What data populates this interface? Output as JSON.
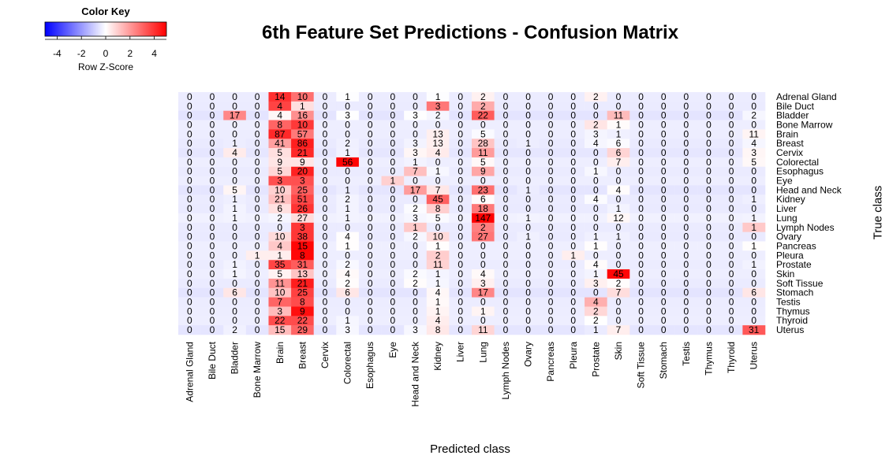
{
  "title": "6th Feature Set Predictions - Confusion Matrix",
  "color_key": {
    "title": "Color Key",
    "xlabel": "Row Z-Score",
    "ticks": [
      "-4",
      "-2",
      "0",
      "2",
      "4"
    ],
    "colors": {
      "low": "#0000ff",
      "mid": "#ffffff",
      "high": "#ff0000"
    }
  },
  "chart_data": {
    "type": "heatmap",
    "title": "6th Feature Set Predictions - Confusion Matrix",
    "xlabel": "Predicted class",
    "ylabel": "True class",
    "color_scale": "row z-score",
    "columns": [
      "Adrenal Gland",
      "Bile Duct",
      "Bladder",
      "Bone Marrow",
      "Brain",
      "Breast",
      "Cervix",
      "Colorectal",
      "Esophagus",
      "Eye",
      "Head and Neck",
      "Kidney",
      "Liver",
      "Lung",
      "Lymph Nodes",
      "Ovary",
      "Pancreas",
      "Pleura",
      "Prostate",
      "Skin",
      "Soft Tissue",
      "Stomach",
      "Testis",
      "Thymus",
      "Thyroid",
      "Uterus"
    ],
    "rows": [
      "Adrenal Gland",
      "Bile Duct",
      "Bladder",
      "Bone Marrow",
      "Brain",
      "Breast",
      "Cervix",
      "Colorectal",
      "Esophagus",
      "Eye",
      "Head and Neck",
      "Kidney",
      "Liver",
      "Lung",
      "Lymph Nodes",
      "Ovary",
      "Pancreas",
      "Pleura",
      "Prostate",
      "Skin",
      "Soft Tissue",
      "Stomach",
      "Testis",
      "Thymus",
      "Thyroid",
      "Uterus"
    ],
    "values": [
      [
        0,
        0,
        0,
        0,
        14,
        10,
        0,
        1,
        0,
        0,
        0,
        1,
        0,
        2,
        0,
        0,
        0,
        0,
        2,
        0,
        0,
        0,
        0,
        0,
        0,
        0
      ],
      [
        0,
        0,
        0,
        0,
        4,
        1,
        0,
        0,
        0,
        0,
        0,
        3,
        0,
        2,
        0,
        0,
        0,
        0,
        0,
        0,
        0,
        0,
        0,
        0,
        0,
        0
      ],
      [
        0,
        0,
        17,
        0,
        4,
        16,
        0,
        3,
        0,
        0,
        3,
        2,
        0,
        22,
        0,
        0,
        0,
        0,
        0,
        11,
        0,
        0,
        0,
        0,
        0,
        2
      ],
      [
        0,
        0,
        0,
        0,
        8,
        10,
        0,
        0,
        0,
        0,
        0,
        0,
        0,
        0,
        0,
        0,
        0,
        0,
        2,
        1,
        0,
        0,
        0,
        0,
        0,
        0
      ],
      [
        0,
        0,
        0,
        0,
        87,
        57,
        0,
        0,
        0,
        0,
        0,
        13,
        0,
        5,
        0,
        0,
        0,
        0,
        3,
        1,
        0,
        0,
        0,
        0,
        0,
        11
      ],
      [
        0,
        0,
        1,
        0,
        41,
        86,
        0,
        2,
        0,
        0,
        3,
        13,
        0,
        28,
        0,
        1,
        0,
        0,
        4,
        6,
        0,
        0,
        0,
        0,
        0,
        4
      ],
      [
        0,
        0,
        4,
        0,
        5,
        21,
        0,
        1,
        0,
        0,
        3,
        4,
        0,
        11,
        0,
        0,
        0,
        0,
        0,
        6,
        0,
        0,
        0,
        0,
        0,
        3
      ],
      [
        0,
        0,
        0,
        0,
        9,
        9,
        0,
        56,
        0,
        0,
        1,
        0,
        0,
        5,
        0,
        0,
        0,
        0,
        0,
        7,
        0,
        0,
        0,
        0,
        0,
        5
      ],
      [
        0,
        0,
        0,
        0,
        5,
        20,
        0,
        0,
        0,
        0,
        7,
        1,
        0,
        9,
        0,
        0,
        0,
        0,
        1,
        0,
        0,
        0,
        0,
        0,
        0,
        0
      ],
      [
        0,
        0,
        0,
        0,
        3,
        3,
        0,
        0,
        0,
        1,
        0,
        0,
        0,
        0,
        0,
        0,
        0,
        0,
        0,
        0,
        0,
        0,
        0,
        0,
        0,
        0
      ],
      [
        0,
        0,
        5,
        0,
        10,
        25,
        0,
        1,
        0,
        0,
        17,
        7,
        0,
        23,
        0,
        1,
        0,
        0,
        0,
        4,
        0,
        0,
        0,
        0,
        0,
        0
      ],
      [
        0,
        0,
        1,
        0,
        21,
        51,
        0,
        2,
        0,
        0,
        0,
        45,
        0,
        6,
        0,
        0,
        0,
        0,
        4,
        0,
        0,
        0,
        0,
        0,
        0,
        1
      ],
      [
        0,
        0,
        1,
        0,
        6,
        26,
        0,
        1,
        0,
        0,
        2,
        8,
        0,
        18,
        0,
        0,
        0,
        0,
        0,
        1,
        0,
        0,
        0,
        0,
        0,
        0
      ],
      [
        0,
        0,
        1,
        0,
        2,
        27,
        0,
        1,
        0,
        0,
        3,
        5,
        0,
        147,
        0,
        1,
        0,
        0,
        0,
        12,
        0,
        0,
        0,
        0,
        0,
        1
      ],
      [
        0,
        0,
        0,
        0,
        0,
        3,
        0,
        0,
        0,
        0,
        1,
        0,
        0,
        2,
        0,
        0,
        0,
        0,
        0,
        0,
        0,
        0,
        0,
        0,
        0,
        1
      ],
      [
        0,
        0,
        0,
        0,
        10,
        38,
        0,
        4,
        0,
        0,
        2,
        10,
        0,
        27,
        0,
        1,
        0,
        0,
        1,
        1,
        0,
        0,
        0,
        0,
        0,
        0
      ],
      [
        0,
        0,
        0,
        0,
        4,
        15,
        0,
        1,
        0,
        0,
        0,
        1,
        0,
        0,
        0,
        0,
        0,
        0,
        1,
        0,
        0,
        0,
        0,
        0,
        0,
        1
      ],
      [
        0,
        0,
        0,
        1,
        1,
        8,
        0,
        0,
        0,
        0,
        0,
        2,
        0,
        0,
        0,
        0,
        0,
        1,
        0,
        0,
        0,
        0,
        0,
        0,
        0,
        0
      ],
      [
        0,
        0,
        1,
        0,
        35,
        31,
        0,
        2,
        0,
        0,
        0,
        11,
        0,
        0,
        0,
        0,
        0,
        0,
        4,
        0,
        0,
        0,
        0,
        0,
        0,
        1
      ],
      [
        0,
        0,
        1,
        0,
        5,
        13,
        0,
        4,
        0,
        0,
        2,
        1,
        0,
        4,
        0,
        0,
        0,
        0,
        1,
        45,
        0,
        0,
        0,
        0,
        0,
        0
      ],
      [
        0,
        0,
        0,
        0,
        11,
        21,
        0,
        2,
        0,
        0,
        2,
        1,
        0,
        3,
        0,
        0,
        0,
        0,
        3,
        2,
        0,
        0,
        0,
        0,
        0,
        0
      ],
      [
        0,
        0,
        6,
        0,
        10,
        25,
        0,
        6,
        0,
        0,
        0,
        4,
        0,
        17,
        0,
        0,
        0,
        0,
        0,
        7,
        0,
        0,
        0,
        0,
        0,
        6
      ],
      [
        0,
        0,
        0,
        0,
        7,
        8,
        0,
        0,
        0,
        0,
        0,
        1,
        0,
        0,
        0,
        0,
        0,
        0,
        4,
        0,
        0,
        0,
        0,
        0,
        0,
        0
      ],
      [
        0,
        0,
        0,
        0,
        3,
        9,
        0,
        0,
        0,
        0,
        0,
        1,
        0,
        1,
        0,
        0,
        0,
        0,
        2,
        0,
        0,
        0,
        0,
        0,
        0,
        0
      ],
      [
        0,
        0,
        0,
        0,
        22,
        22,
        0,
        1,
        0,
        0,
        0,
        4,
        0,
        0,
        0,
        0,
        0,
        0,
        2,
        0,
        0,
        0,
        0,
        0,
        0,
        0
      ],
      [
        0,
        0,
        2,
        0,
        15,
        29,
        0,
        3,
        0,
        0,
        3,
        8,
        0,
        11,
        0,
        0,
        0,
        0,
        1,
        7,
        0,
        0,
        0,
        0,
        0,
        31
      ]
    ]
  }
}
